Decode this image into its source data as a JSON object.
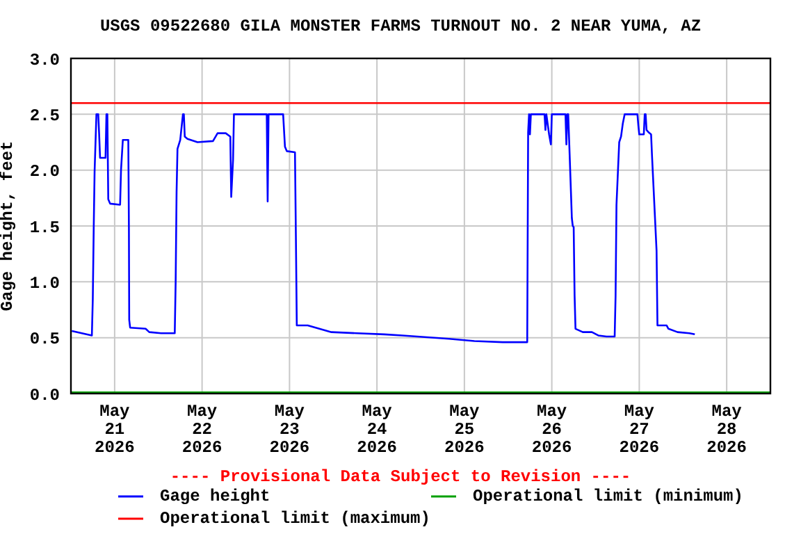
{
  "chart_data": {
    "type": "line",
    "title": "USGS 09522680 GILA MONSTER FARMS TURNOUT NO. 2 NEAR YUMA, AZ",
    "ylabel": "Gage height, feet",
    "annotations": [
      "---- Provisional Data Subject to Revision ----"
    ],
    "xlim": [
      "2026-05-20T12:00",
      "2026-05-28T12:00"
    ],
    "xticks": [
      {
        "value": "2026-05-21",
        "label": "May\n21\n2026"
      },
      {
        "value": "2026-05-22",
        "label": "May\n22\n2026"
      },
      {
        "value": "2026-05-23",
        "label": "May\n23\n2026"
      },
      {
        "value": "2026-05-24",
        "label": "May\n24\n2026"
      },
      {
        "value": "2026-05-25",
        "label": "May\n25\n2026"
      },
      {
        "value": "2026-05-26",
        "label": "May\n26\n2026"
      },
      {
        "value": "2026-05-27",
        "label": "May\n27\n2026"
      },
      {
        "value": "2026-05-28",
        "label": "May\n28\n2026"
      }
    ],
    "ylim": [
      0,
      3
    ],
    "yticks": [
      {
        "value": 0,
        "label": "0.0"
      },
      {
        "value": 0.5,
        "label": "0.5"
      },
      {
        "value": 1,
        "label": "1.0"
      },
      {
        "value": 1.5,
        "label": "1.5"
      },
      {
        "value": 2,
        "label": "2.0"
      },
      {
        "value": 2.5,
        "label": "2.5"
      },
      {
        "value": 3,
        "label": "3.0"
      }
    ],
    "grid": true,
    "legend": "bottom",
    "series": [
      {
        "name": "Gage height",
        "color": "#0000ff",
        "x": [
          "2026-05-20T12:15",
          "2026-05-20T15:00",
          "2026-05-20T17:45",
          "2026-05-20T18:00",
          "2026-05-20T18:15",
          "2026-05-20T18:30",
          "2026-05-20T19:00",
          "2026-05-20T19:30",
          "2026-05-20T19:45",
          "2026-05-20T20:00",
          "2026-05-20T21:30",
          "2026-05-20T21:45",
          "2026-05-20T22:00",
          "2026-05-20T22:15",
          "2026-05-20T22:45",
          "2026-05-21T01:30",
          "2026-05-21T01:45",
          "2026-05-21T02:15",
          "2026-05-21T03:45",
          "2026-05-21T03:55",
          "2026-05-21T04:00",
          "2026-05-21T04:15",
          "2026-05-21T08:30",
          "2026-05-21T09:30",
          "2026-05-21T12:45",
          "2026-05-21T16:30",
          "2026-05-21T16:45",
          "2026-05-21T17:00",
          "2026-05-21T17:15",
          "2026-05-21T18:00",
          "2026-05-21T18:45",
          "2026-05-21T19:00",
          "2026-05-21T19:15",
          "2026-05-21T20:00",
          "2026-05-21T22:45",
          "2026-05-22T03:00",
          "2026-05-22T04:15",
          "2026-05-22T06:30",
          "2026-05-22T07:45",
          "2026-05-22T08:00",
          "2026-05-22T08:30",
          "2026-05-22T08:45",
          "2026-05-22T17:45",
          "2026-05-22T18:00",
          "2026-05-22T18:15",
          "2026-05-22T22:15",
          "2026-05-22T22:45",
          "2026-05-22T23:15",
          "2026-05-23T01:30",
          "2026-05-23T01:45",
          "2026-05-23T02:00",
          "2026-05-23T05:00",
          "2026-05-23T11:30",
          "2026-05-23T18:30",
          "2026-05-24T02:00",
          "2026-05-24T07:00",
          "2026-05-24T19:45",
          "2026-05-25T02:45",
          "2026-05-25T10:30",
          "2026-05-25T17:15",
          "2026-05-25T17:30",
          "2026-05-25T17:45",
          "2026-05-25T18:00",
          "2026-05-25T18:15",
          "2026-05-25T22:00",
          "2026-05-25T22:15",
          "2026-05-25T22:30",
          "2026-05-25T23:15",
          "2026-05-25T23:45",
          "2026-05-26T00:00",
          "2026-05-26T03:45",
          "2026-05-26T04:00",
          "2026-05-26T04:15",
          "2026-05-26T04:30",
          "2026-05-26T04:45",
          "2026-05-26T05:30",
          "2026-05-26T05:45",
          "2026-05-26T06:00",
          "2026-05-26T06:15",
          "2026-05-26T06:30",
          "2026-05-26T08:30",
          "2026-05-26T11:00",
          "2026-05-26T12:45",
          "2026-05-26T15:00",
          "2026-05-26T17:15",
          "2026-05-26T17:30",
          "2026-05-26T17:45",
          "2026-05-26T18:30",
          "2026-05-26T19:00",
          "2026-05-26T19:30",
          "2026-05-26T20:00",
          "2026-05-26T23:30",
          "2026-05-26T23:45",
          "2026-05-27T00:00",
          "2026-05-27T01:15",
          "2026-05-27T01:30",
          "2026-05-27T01:45",
          "2026-05-27T02:00",
          "2026-05-27T02:30",
          "2026-05-27T03:15",
          "2026-05-27T03:30",
          "2026-05-27T04:45",
          "2026-05-27T05:00",
          "2026-05-27T07:30",
          "2026-05-27T08:00",
          "2026-05-27T10:30",
          "2026-05-27T13:45",
          "2026-05-27T15:15"
        ],
        "values": [
          0.56,
          0.54,
          0.52,
          0.84,
          1.46,
          1.99,
          2.5,
          2.5,
          2.32,
          2.11,
          2.11,
          2.5,
          2.5,
          1.74,
          1.7,
          1.69,
          2.0,
          2.27,
          2.27,
          1.49,
          0.66,
          0.59,
          0.58,
          0.55,
          0.54,
          0.54,
          1.0,
          1.8,
          2.19,
          2.27,
          2.5,
          2.5,
          2.3,
          2.28,
          2.25,
          2.26,
          2.33,
          2.33,
          2.3,
          1.76,
          2.09,
          2.5,
          2.5,
          1.72,
          2.5,
          2.5,
          2.21,
          2.17,
          2.16,
          1.41,
          0.61,
          0.61,
          0.55,
          0.54,
          0.53,
          0.52,
          0.49,
          0.47,
          0.46,
          0.46,
          2.34,
          2.5,
          2.32,
          2.5,
          2.5,
          2.36,
          2.5,
          2.32,
          2.23,
          2.5,
          2.5,
          2.23,
          2.5,
          2.5,
          2.27,
          1.57,
          1.5,
          1.49,
          0.88,
          0.58,
          0.55,
          0.55,
          0.52,
          0.51,
          0.51,
          0.87,
          1.69,
          2.25,
          2.3,
          2.42,
          2.5,
          2.5,
          2.4,
          2.32,
          2.32,
          2.5,
          2.5,
          2.36,
          2.34,
          2.32,
          2.13,
          1.28,
          0.61,
          0.61,
          0.58,
          0.55,
          0.54,
          0.53
        ]
      },
      {
        "name": "Operational limit (minimum)",
        "color": "#00a000",
        "x": [
          "2026-05-20T12:00",
          "2026-05-28T12:00"
        ],
        "values": [
          0.01,
          0.01
        ]
      },
      {
        "name": "Operational limit (maximum)",
        "color": "#ff0000",
        "x": [
          "2026-05-20T12:00",
          "2026-05-28T12:00"
        ],
        "values": [
          2.6,
          2.6
        ]
      }
    ]
  }
}
